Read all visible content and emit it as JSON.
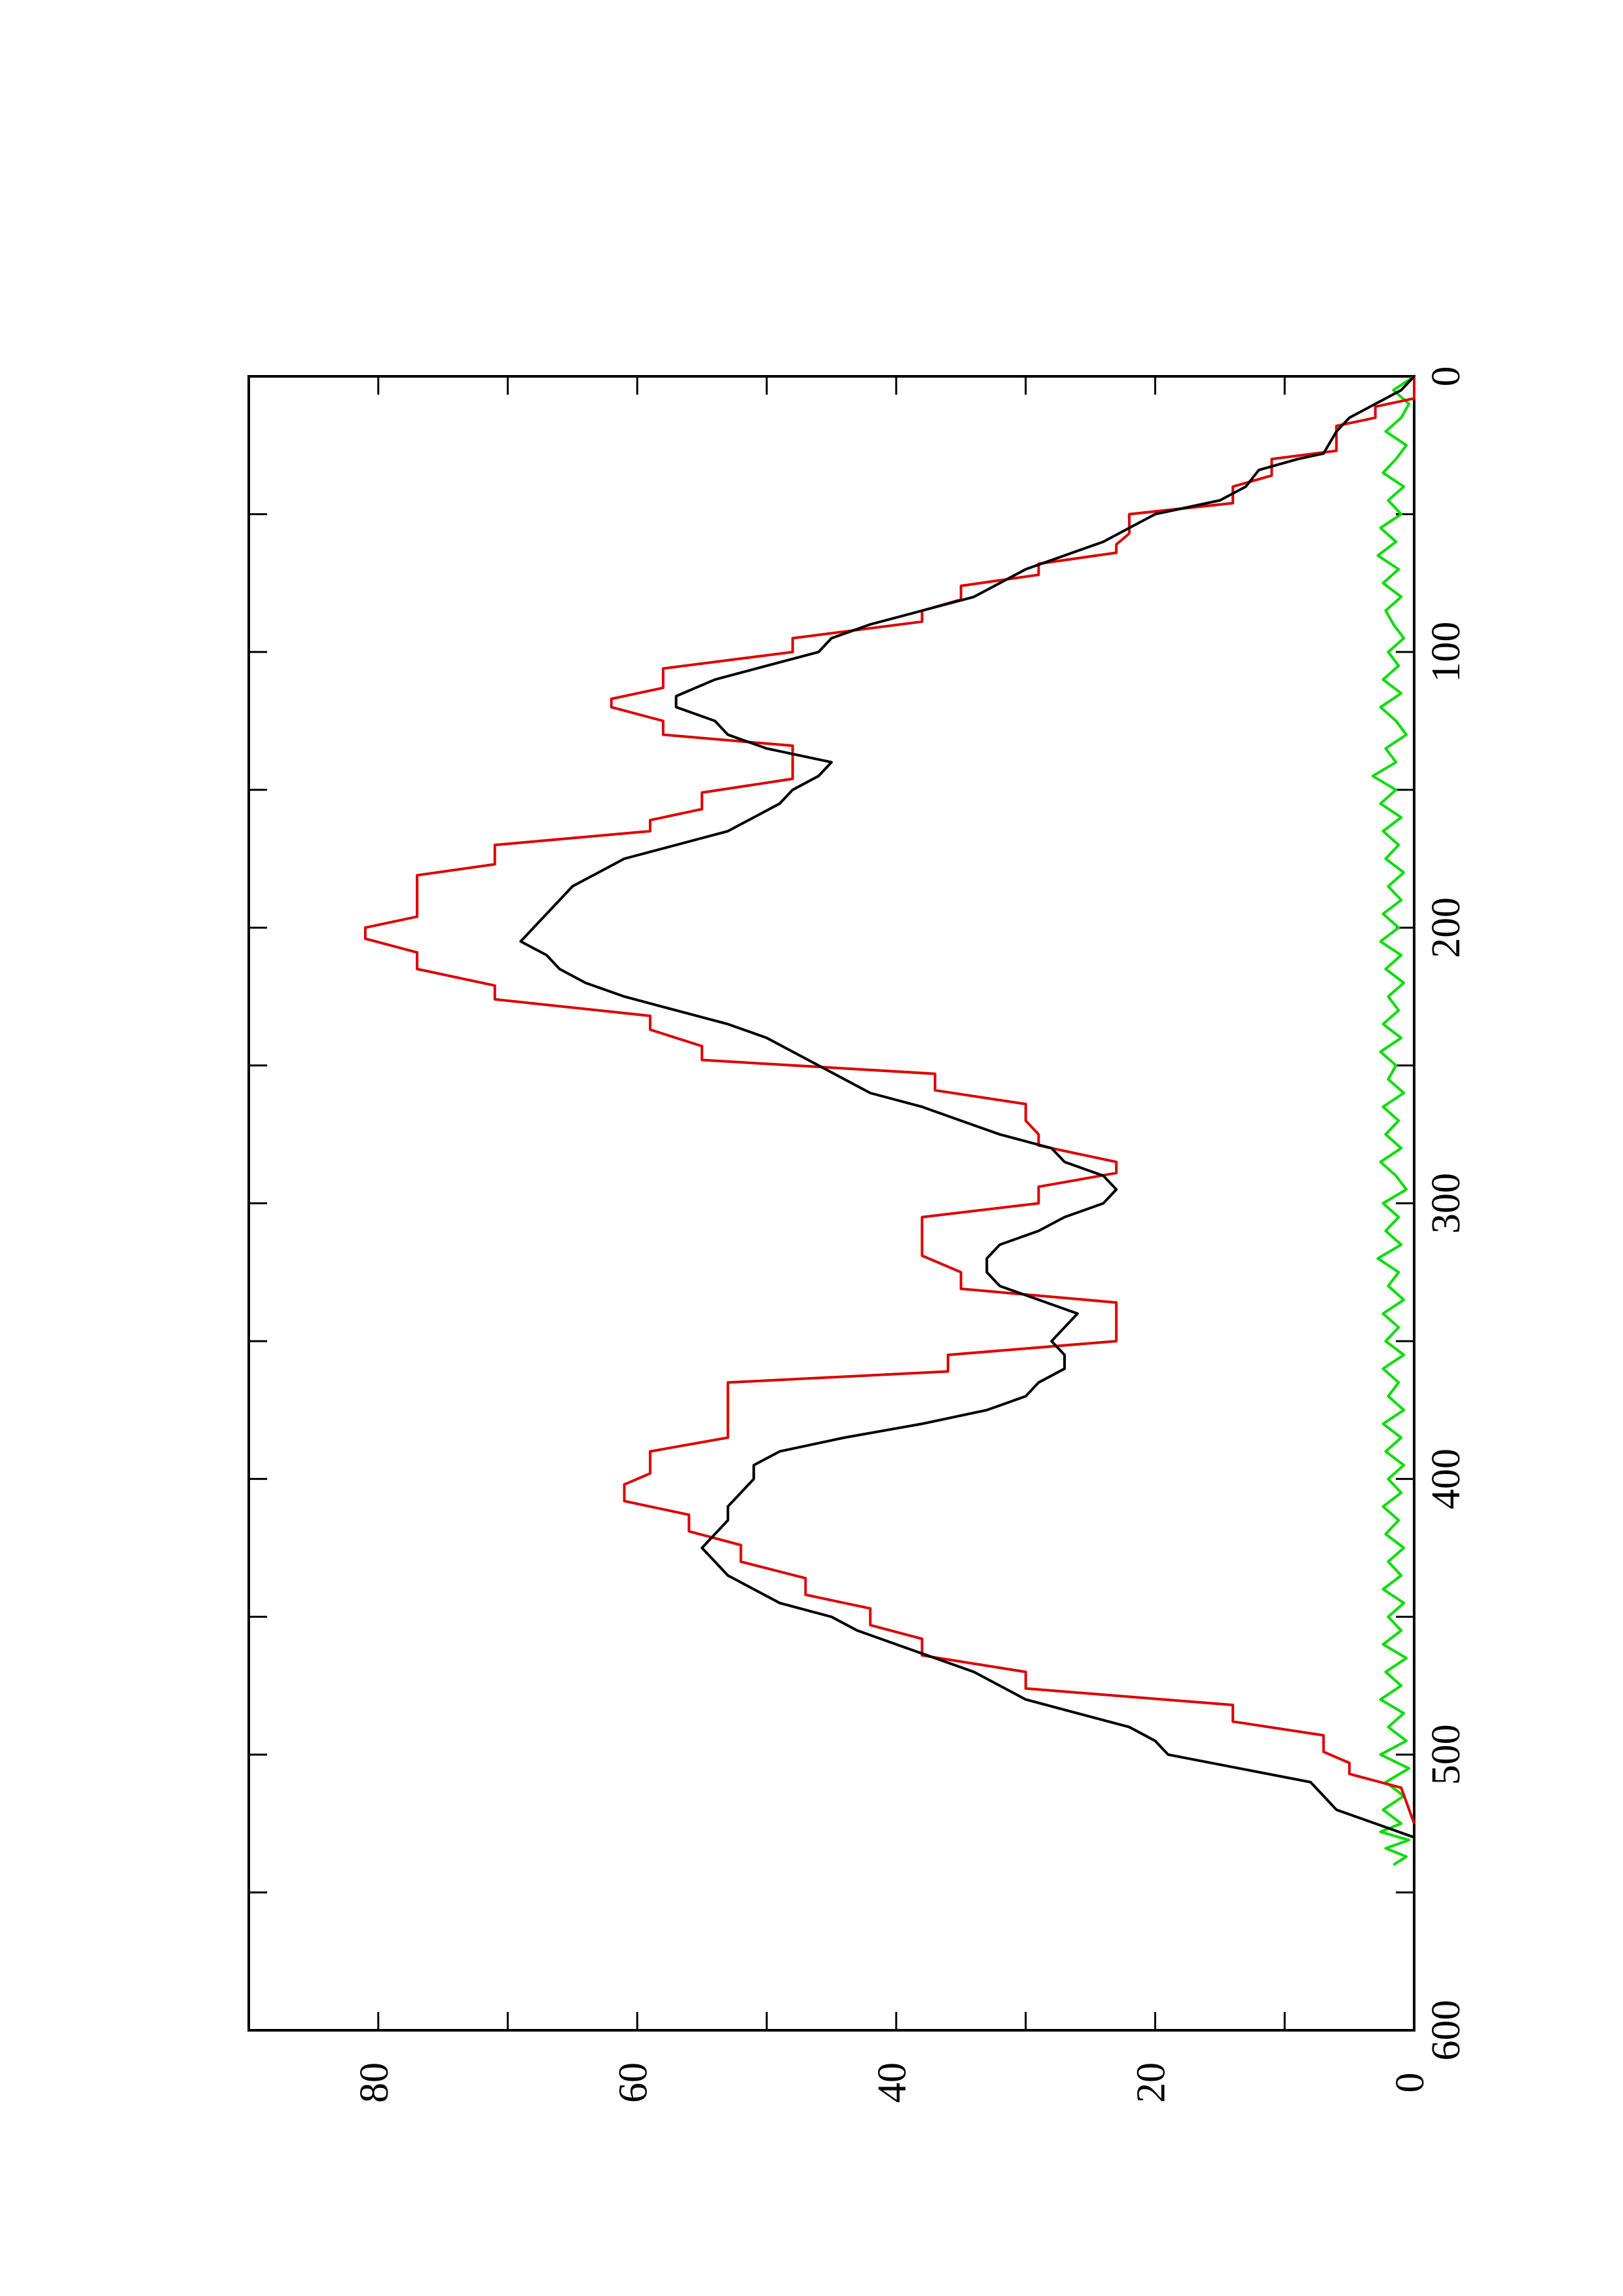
{
  "chart_data": {
    "type": "line",
    "orientation": "rotated-90-clockwise",
    "title": "",
    "xlabel": "",
    "ylabel": "",
    "xlim": [
      0,
      600
    ],
    "ylim": [
      0,
      90
    ],
    "xticks": [
      0,
      100,
      200,
      300,
      400,
      500,
      600
    ],
    "xtick_labels": [
      "0",
      "100",
      "200",
      "300",
      "400",
      "500",
      "600"
    ],
    "yticks": [
      0,
      20,
      40,
      60,
      80
    ],
    "ytick_labels": [
      "0",
      "20",
      "40",
      "60",
      "80"
    ],
    "grid": false,
    "legend": "none",
    "series": [
      {
        "color": "#000000",
        "style": "smooth",
        "points": [
          [
            0,
            0
          ],
          [
            5,
            1
          ],
          [
            10,
            3
          ],
          [
            15,
            5
          ],
          [
            20,
            6
          ],
          [
            28,
            7
          ],
          [
            30,
            9
          ],
          [
            34,
            12
          ],
          [
            40,
            13
          ],
          [
            45,
            15
          ],
          [
            50,
            20
          ],
          [
            55,
            22
          ],
          [
            60,
            24
          ],
          [
            65,
            27
          ],
          [
            70,
            30
          ],
          [
            75,
            32
          ],
          [
            80,
            34
          ],
          [
            85,
            38
          ],
          [
            90,
            42
          ],
          [
            95,
            45
          ],
          [
            100,
            46
          ],
          [
            105,
            50
          ],
          [
            110,
            54
          ],
          [
            116,
            57
          ],
          [
            120,
            57
          ],
          [
            125,
            54
          ],
          [
            130,
            53
          ],
          [
            135,
            50
          ],
          [
            140,
            45
          ],
          [
            145,
            46
          ],
          [
            150,
            48
          ],
          [
            155,
            49
          ],
          [
            160,
            51
          ],
          [
            165,
            53
          ],
          [
            170,
            57
          ],
          [
            175,
            61
          ],
          [
            180,
            63
          ],
          [
            185,
            65
          ],
          [
            190,
            66
          ],
          [
            195,
            67
          ],
          [
            200,
            68
          ],
          [
            205,
            69
          ],
          [
            210,
            67
          ],
          [
            215,
            66
          ],
          [
            220,
            64
          ],
          [
            225,
            61
          ],
          [
            230,
            57
          ],
          [
            235,
            53
          ],
          [
            240,
            50
          ],
          [
            245,
            48
          ],
          [
            250,
            46
          ],
          [
            255,
            44
          ],
          [
            260,
            42
          ],
          [
            265,
            38
          ],
          [
            270,
            35
          ],
          [
            275,
            32
          ],
          [
            280,
            28
          ],
          [
            285,
            27
          ],
          [
            290,
            24
          ],
          [
            295,
            23
          ],
          [
            300,
            24
          ],
          [
            305,
            27
          ],
          [
            310,
            29
          ],
          [
            315,
            32
          ],
          [
            320,
            33
          ],
          [
            325,
            33
          ],
          [
            330,
            32
          ],
          [
            335,
            29
          ],
          [
            340,
            26
          ],
          [
            345,
            27
          ],
          [
            350,
            28
          ],
          [
            355,
            27
          ],
          [
            360,
            27
          ],
          [
            365,
            29
          ],
          [
            370,
            30
          ],
          [
            375,
            33
          ],
          [
            380,
            38
          ],
          [
            385,
            44
          ],
          [
            390,
            49
          ],
          [
            395,
            51
          ],
          [
            400,
            51
          ],
          [
            405,
            52
          ],
          [
            410,
            53
          ],
          [
            415,
            53
          ],
          [
            420,
            54
          ],
          [
            425,
            55
          ],
          [
            430,
            54
          ],
          [
            435,
            53
          ],
          [
            440,
            51
          ],
          [
            445,
            49
          ],
          [
            450,
            45
          ],
          [
            455,
            43
          ],
          [
            460,
            40
          ],
          [
            465,
            37
          ],
          [
            470,
            34
          ],
          [
            475,
            32
          ],
          [
            480,
            30
          ],
          [
            485,
            26
          ],
          [
            490,
            22
          ],
          [
            495,
            20
          ],
          [
            500,
            19
          ],
          [
            510,
            8
          ],
          [
            515,
            7
          ],
          [
            520,
            6
          ],
          [
            525,
            3
          ],
          [
            530,
            0
          ]
        ]
      },
      {
        "color": "#dd0000",
        "style": "step",
        "points": [
          [
            0,
            0
          ],
          [
            8,
            0
          ],
          [
            11,
            3
          ],
          [
            15,
            3
          ],
          [
            18,
            6
          ],
          [
            27,
            6
          ],
          [
            30,
            11
          ],
          [
            36,
            11
          ],
          [
            40,
            14
          ],
          [
            46,
            14
          ],
          [
            50,
            22
          ],
          [
            57,
            22
          ],
          [
            61,
            23
          ],
          [
            64,
            23
          ],
          [
            68,
            29
          ],
          [
            72,
            29
          ],
          [
            76,
            35
          ],
          [
            81,
            35
          ],
          [
            85,
            38
          ],
          [
            89,
            38
          ],
          [
            95,
            48
          ],
          [
            100,
            48
          ],
          [
            106,
            58
          ],
          [
            113,
            58
          ],
          [
            117,
            62
          ],
          [
            120,
            62
          ],
          [
            125,
            58
          ],
          [
            130,
            58
          ],
          [
            134,
            48
          ],
          [
            146,
            48
          ],
          [
            151,
            55
          ],
          [
            157,
            55
          ],
          [
            161,
            59
          ],
          [
            165,
            59
          ],
          [
            170,
            71
          ],
          [
            177,
            71
          ],
          [
            181,
            77
          ],
          [
            196,
            77
          ],
          [
            200,
            81
          ],
          [
            204,
            81
          ],
          [
            209,
            77
          ],
          [
            215,
            77
          ],
          [
            221,
            71
          ],
          [
            226,
            71
          ],
          [
            232,
            59
          ],
          [
            237,
            59
          ],
          [
            243,
            55
          ],
          [
            248,
            55
          ],
          [
            253,
            37
          ],
          [
            259,
            37
          ],
          [
            264,
            30
          ],
          [
            270,
            30
          ],
          [
            275,
            29
          ],
          [
            279,
            29
          ],
          [
            285,
            23
          ],
          [
            289,
            23
          ],
          [
            294,
            29
          ],
          [
            300,
            29
          ],
          [
            305,
            38
          ],
          [
            319,
            38
          ],
          [
            325,
            35
          ],
          [
            331,
            35
          ],
          [
            336,
            23
          ],
          [
            350,
            23
          ],
          [
            355,
            36
          ],
          [
            361,
            36
          ],
          [
            365,
            53
          ],
          [
            385,
            53
          ],
          [
            390,
            59
          ],
          [
            398,
            59
          ],
          [
            402,
            61
          ],
          [
            408,
            61
          ],
          [
            413,
            56
          ],
          [
            419,
            56
          ],
          [
            424,
            52
          ],
          [
            430,
            52
          ],
          [
            436,
            47
          ],
          [
            442,
            47
          ],
          [
            447,
            42
          ],
          [
            453,
            42
          ],
          [
            458,
            38
          ],
          [
            464,
            38
          ],
          [
            470,
            30
          ],
          [
            476,
            30
          ],
          [
            482,
            14
          ],
          [
            488,
            14
          ],
          [
            493,
            7
          ],
          [
            499,
            7
          ],
          [
            503,
            5
          ],
          [
            507,
            5
          ],
          [
            512,
            1
          ],
          [
            525,
            0
          ]
        ]
      },
      {
        "color": "#00dd00",
        "style": "noise",
        "points": [
          [
            0,
            0
          ],
          [
            5,
            1.6
          ],
          [
            10,
            0.4
          ],
          [
            15,
            1.0
          ],
          [
            20,
            2.2
          ],
          [
            25,
            0.6
          ],
          [
            30,
            1.4
          ],
          [
            35,
            2.4
          ],
          [
            40,
            0.8
          ],
          [
            45,
            2.0
          ],
          [
            50,
            1.0
          ],
          [
            55,
            2.6
          ],
          [
            60,
            1.4
          ],
          [
            65,
            2.8
          ],
          [
            70,
            1.2
          ],
          [
            75,
            2.4
          ],
          [
            80,
            1.0
          ],
          [
            85,
            2.2
          ],
          [
            90,
            1.6
          ],
          [
            95,
            0.8
          ],
          [
            100,
            2.0
          ],
          [
            105,
            1.2
          ],
          [
            110,
            2.4
          ],
          [
            115,
            1.0
          ],
          [
            120,
            2.6
          ],
          [
            125,
            1.4
          ],
          [
            130,
            0.6
          ],
          [
            135,
            2.2
          ],
          [
            140,
            1.4
          ],
          [
            145,
            3.2
          ],
          [
            150,
            1.4
          ],
          [
            155,
            2.6
          ],
          [
            160,
            1.0
          ],
          [
            165,
            2.4
          ],
          [
            170,
            1.2
          ],
          [
            175,
            2.2
          ],
          [
            180,
            0.8
          ],
          [
            185,
            2.0
          ],
          [
            190,
            1.0
          ],
          [
            195,
            2.4
          ],
          [
            200,
            1.2
          ],
          [
            205,
            2.6
          ],
          [
            210,
            1.0
          ],
          [
            215,
            2.2
          ],
          [
            220,
            0.8
          ],
          [
            225,
            2.0
          ],
          [
            230,
            1.2
          ],
          [
            235,
            2.4
          ],
          [
            240,
            1.0
          ],
          [
            245,
            2.6
          ],
          [
            250,
            1.4
          ],
          [
            255,
            2.0
          ],
          [
            260,
            0.8
          ],
          [
            265,
            2.4
          ],
          [
            270,
            1.2
          ],
          [
            275,
            2.2
          ],
          [
            280,
            1.0
          ],
          [
            285,
            2.6
          ],
          [
            290,
            1.4
          ],
          [
            295,
            0.6
          ],
          [
            300,
            2.4
          ],
          [
            305,
            1.2
          ],
          [
            310,
            2.2
          ],
          [
            315,
            1.0
          ],
          [
            320,
            2.8
          ],
          [
            325,
            1.2
          ],
          [
            330,
            2.0
          ],
          [
            335,
            0.8
          ],
          [
            340,
            2.4
          ],
          [
            345,
            1.2
          ],
          [
            350,
            2.2
          ],
          [
            355,
            0.8
          ],
          [
            360,
            2.4
          ],
          [
            365,
            1.2
          ],
          [
            370,
            2.0
          ],
          [
            375,
            0.8
          ],
          [
            380,
            2.4
          ],
          [
            385,
            1.0
          ],
          [
            390,
            2.2
          ],
          [
            395,
            0.8
          ],
          [
            400,
            2.0
          ],
          [
            405,
            1.0
          ],
          [
            410,
            2.4
          ],
          [
            415,
            1.2
          ],
          [
            420,
            2.2
          ],
          [
            425,
            0.8
          ],
          [
            430,
            2.0
          ],
          [
            435,
            1.0
          ],
          [
            440,
            2.4
          ],
          [
            445,
            0.8
          ],
          [
            450,
            2.0
          ],
          [
            455,
            1.0
          ],
          [
            460,
            2.4
          ],
          [
            465,
            0.6
          ],
          [
            470,
            2.2
          ],
          [
            475,
            1.0
          ],
          [
            480,
            2.6
          ],
          [
            485,
            0.8
          ],
          [
            490,
            2.0
          ],
          [
            495,
            0.6
          ],
          [
            500,
            2.6
          ],
          [
            505,
            0.4
          ],
          [
            510,
            2.2
          ],
          [
            515,
            0.8
          ],
          [
            520,
            2.4
          ],
          [
            525,
            1.0
          ],
          [
            528,
            2.6
          ],
          [
            531,
            0.4
          ],
          [
            534,
            2.2
          ],
          [
            537,
            0.6
          ],
          [
            540,
            1.6
          ]
        ]
      }
    ]
  }
}
